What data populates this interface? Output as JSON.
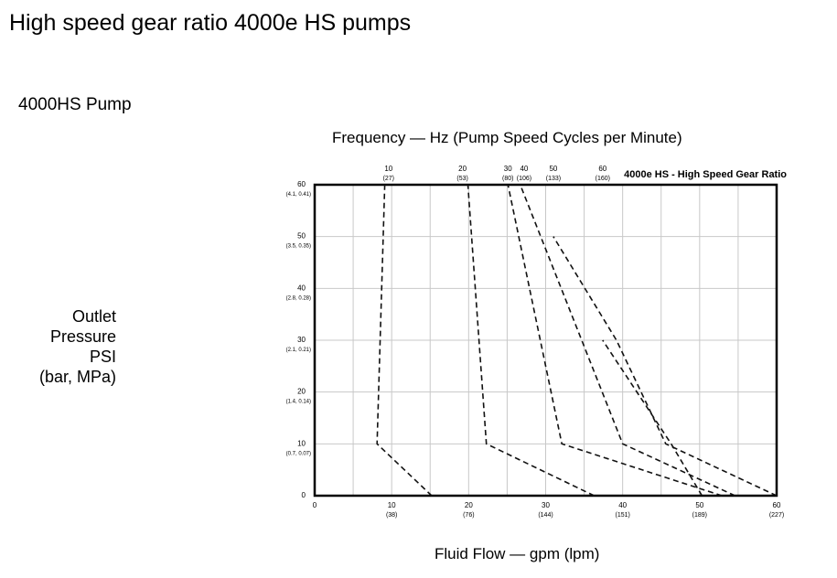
{
  "page": {
    "title": "High speed gear ratio 4000e HS pumps",
    "pump_label": "4000HS Pump"
  },
  "chart_data": {
    "type": "line",
    "title": "4000e HS - High Speed Gear Ratio",
    "xlabel": "Fluid Flow — gpm (lpm)",
    "top_axis_label": "Frequency — Hz (Pump Speed Cycles per Minute)",
    "ylabel_lines": [
      "Outlet",
      "Pressure",
      "PSI",
      "(bar, MPa)"
    ],
    "xlim": [
      0,
      60
    ],
    "ylim": [
      0,
      60
    ],
    "grid": true,
    "x_ticks": [
      {
        "value": 0,
        "label": "0",
        "sub": ""
      },
      {
        "value": 10,
        "label": "10",
        "sub": "(38)"
      },
      {
        "value": 20,
        "label": "20",
        "sub": "(76)"
      },
      {
        "value": 30,
        "label": "30",
        "sub": "(144)"
      },
      {
        "value": 40,
        "label": "40",
        "sub": "(151)"
      },
      {
        "value": 50,
        "label": "50",
        "sub": "(189)"
      },
      {
        "value": 60,
        "label": "60",
        "sub": "(227)"
      }
    ],
    "y_ticks": [
      {
        "value": 0,
        "label": "0",
        "sub": ""
      },
      {
        "value": 10,
        "label": "10",
        "sub": "(0.7, 0.07)"
      },
      {
        "value": 20,
        "label": "20",
        "sub": "(1.4, 0.14)"
      },
      {
        "value": 30,
        "label": "30",
        "sub": "(2.1, 0.21)"
      },
      {
        "value": 40,
        "label": "40",
        "sub": "(2.8, 0.28)"
      },
      {
        "value": 50,
        "label": "50",
        "sub": "(3.5, 0.35)"
      },
      {
        "value": 60,
        "label": "60",
        "sub": "(4.1, 0.41)"
      }
    ],
    "top_ticks": [
      {
        "value": 9.6,
        "label": "10",
        "sub": "(27)"
      },
      {
        "value": 19.2,
        "label": "20",
        "sub": "(53)"
      },
      {
        "value": 25.1,
        "label": "30",
        "sub": "(80)"
      },
      {
        "value": 27.2,
        "label": "40",
        "sub": "(106)"
      },
      {
        "value": 31,
        "label": "50",
        "sub": "(133)"
      },
      {
        "value": 37.4,
        "label": "60",
        "sub": "(160)"
      }
    ],
    "series": [
      {
        "x": [
          15.2,
          8.1,
          9.1
        ],
        "y": [
          0,
          10,
          60
        ]
      },
      {
        "x": [
          36.3,
          22.3,
          19.9
        ],
        "y": [
          0,
          10,
          60
        ]
      },
      {
        "x": [
          52.9,
          32.1,
          25.1
        ],
        "y": [
          0,
          10,
          60
        ]
      },
      {
        "x": [
          54.6,
          40,
          26.7
        ],
        "y": [
          0,
          10,
          60
        ]
      },
      {
        "x": [
          60,
          45.6,
          39.2,
          31
        ],
        "y": [
          0,
          10,
          30,
          50
        ]
      },
      {
        "x": [
          50.3,
          46.3,
          37.4
        ],
        "y": [
          0,
          10,
          30
        ]
      }
    ]
  }
}
